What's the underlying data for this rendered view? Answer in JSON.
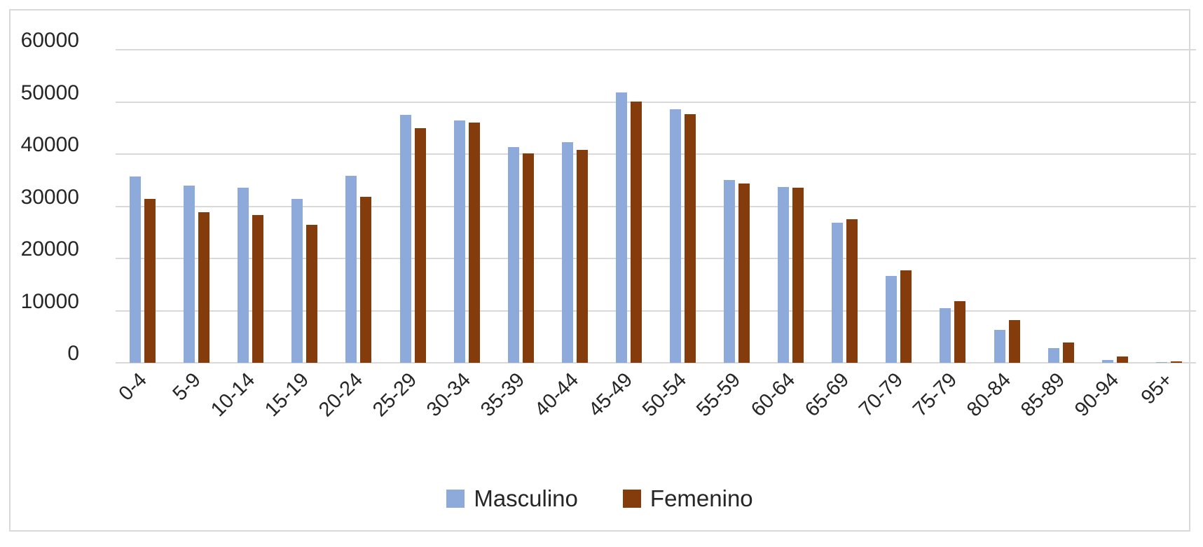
{
  "chart_data": {
    "type": "bar",
    "title": "",
    "categories": [
      "0-4",
      "5-9",
      "10-14",
      "15-19",
      "20-24",
      "25-29",
      "30-34",
      "35-39",
      "40-44",
      "45-49",
      "50-54",
      "55-59",
      "60-64",
      "65-69",
      "70-79",
      "75-79",
      "80-84",
      "85-89",
      "90-94",
      "95+"
    ],
    "series": [
      {
        "name": "Masculino",
        "color": "#8EAADB",
        "values": [
          35700,
          33900,
          33500,
          31400,
          35800,
          47500,
          46500,
          41300,
          42300,
          51800,
          48600,
          35000,
          33700,
          26800,
          16700,
          10500,
          6300,
          2800,
          500,
          100
        ]
      },
      {
        "name": "Femenino",
        "color": "#843C0C",
        "values": [
          31400,
          28900,
          28300,
          26500,
          31800,
          45000,
          46000,
          40100,
          40800,
          50000,
          47600,
          34400,
          33600,
          27500,
          17700,
          11800,
          8200,
          3900,
          1200,
          300
        ]
      }
    ],
    "xlabel": "",
    "ylabel": "",
    "ylim": [
      0,
      60000
    ],
    "ytick_interval": 10000,
    "ytick_labels": [
      "0",
      "10000",
      "20000",
      "30000",
      "40000",
      "50000",
      "60000"
    ],
    "grid": "horizontal",
    "legend_position": "bottom"
  },
  "colors": {
    "masculino": "#8EAADB",
    "femenino": "#843C0C",
    "gridline": "#D9D9D9",
    "frame_border": "#D9D9D9",
    "axis_text": "#262626",
    "background": "#FFFFFF"
  }
}
